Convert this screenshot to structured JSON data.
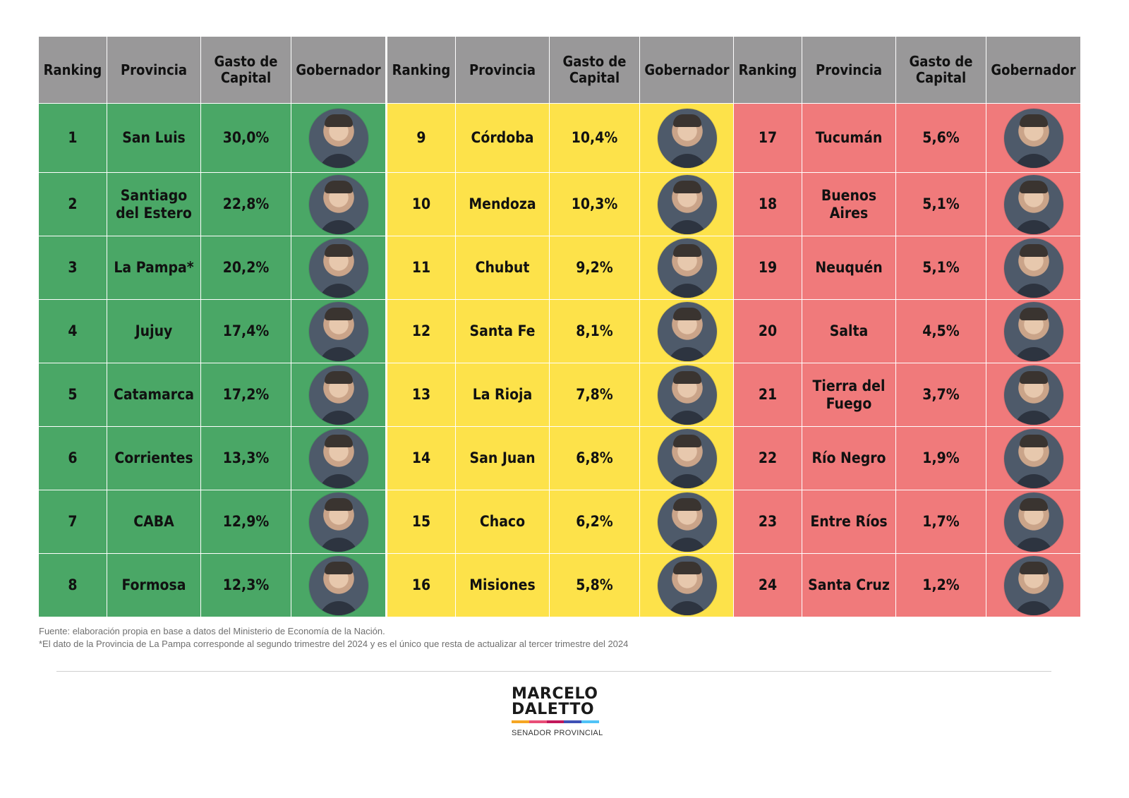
{
  "chart_data": {
    "type": "table",
    "columns": [
      "Ranking",
      "Provincia",
      "Gasto de Capital",
      "Gobernador"
    ],
    "groups": [
      {
        "color": "#4aa766",
        "rows": [
          {
            "rank": "1",
            "provincia": "San Luis",
            "gasto": "30,0%",
            "value": 30.0
          },
          {
            "rank": "2",
            "provincia": "Santiago del Estero",
            "gasto": "22,8%",
            "value": 22.8
          },
          {
            "rank": "3",
            "provincia": "La Pampa*",
            "gasto": "20,2%",
            "value": 20.2
          },
          {
            "rank": "4",
            "provincia": "Jujuy",
            "gasto": "17,4%",
            "value": 17.4
          },
          {
            "rank": "5",
            "provincia": "Catamarca",
            "gasto": "17,2%",
            "value": 17.2
          },
          {
            "rank": "6",
            "provincia": "Corrientes",
            "gasto": "13,3%",
            "value": 13.3
          },
          {
            "rank": "7",
            "provincia": "CABA",
            "gasto": "12,9%",
            "value": 12.9
          },
          {
            "rank": "8",
            "provincia": "Formosa",
            "gasto": "12,3%",
            "value": 12.3
          }
        ]
      },
      {
        "color": "#fde24a",
        "rows": [
          {
            "rank": "9",
            "provincia": "Córdoba",
            "gasto": "10,4%",
            "value": 10.4
          },
          {
            "rank": "10",
            "provincia": "Mendoza",
            "gasto": "10,3%",
            "value": 10.3
          },
          {
            "rank": "11",
            "provincia": "Chubut",
            "gasto": "9,2%",
            "value": 9.2
          },
          {
            "rank": "12",
            "provincia": "Santa Fe",
            "gasto": "8,1%",
            "value": 8.1
          },
          {
            "rank": "13",
            "provincia": "La Rioja",
            "gasto": "7,8%",
            "value": 7.8
          },
          {
            "rank": "14",
            "provincia": "San Juan",
            "gasto": "6,8%",
            "value": 6.8
          },
          {
            "rank": "15",
            "provincia": "Chaco",
            "gasto": "6,2%",
            "value": 6.2
          },
          {
            "rank": "16",
            "provincia": "Misiones",
            "gasto": "5,8%",
            "value": 5.8
          }
        ]
      },
      {
        "color": "#f07a7b",
        "rows": [
          {
            "rank": "17",
            "provincia": "Tucumán",
            "gasto": "5,6%",
            "value": 5.6
          },
          {
            "rank": "18",
            "provincia": "Buenos Aires",
            "gasto": "5,1%",
            "value": 5.1
          },
          {
            "rank": "19",
            "provincia": "Neuquén",
            "gasto": "5,1%",
            "value": 5.1
          },
          {
            "rank": "20",
            "provincia": "Salta",
            "gasto": "4,5%",
            "value": 4.5
          },
          {
            "rank": "21",
            "provincia": "Tierra del Fuego",
            "gasto": "3,7%",
            "value": 3.7
          },
          {
            "rank": "22",
            "provincia": "Río Negro",
            "gasto": "1,9%",
            "value": 1.9
          },
          {
            "rank": "23",
            "provincia": "Entre Ríos",
            "gasto": "1,7%",
            "value": 1.7
          },
          {
            "rank": "24",
            "provincia": "Santa Cruz",
            "gasto": "1,2%",
            "value": 1.2
          }
        ]
      }
    ]
  },
  "footnotes": {
    "source": "Fuente: elaboración propia en base a datos del Ministerio de Economía de la Nación.",
    "note": "*El dato de la Provincia de La Pampa corresponde al segundo trimestre del 2024 y es el único que resta de actualizar al tercer trimestre del 2024"
  },
  "logo": {
    "line1": "MARCELO",
    "line2": "DALETTO",
    "subtitle": "SENADOR PROVINCIAL",
    "bar_colors": [
      "#f5a623",
      "#e94e77",
      "#c2185b",
      "#3f51b5",
      "#4fc3f7"
    ]
  }
}
